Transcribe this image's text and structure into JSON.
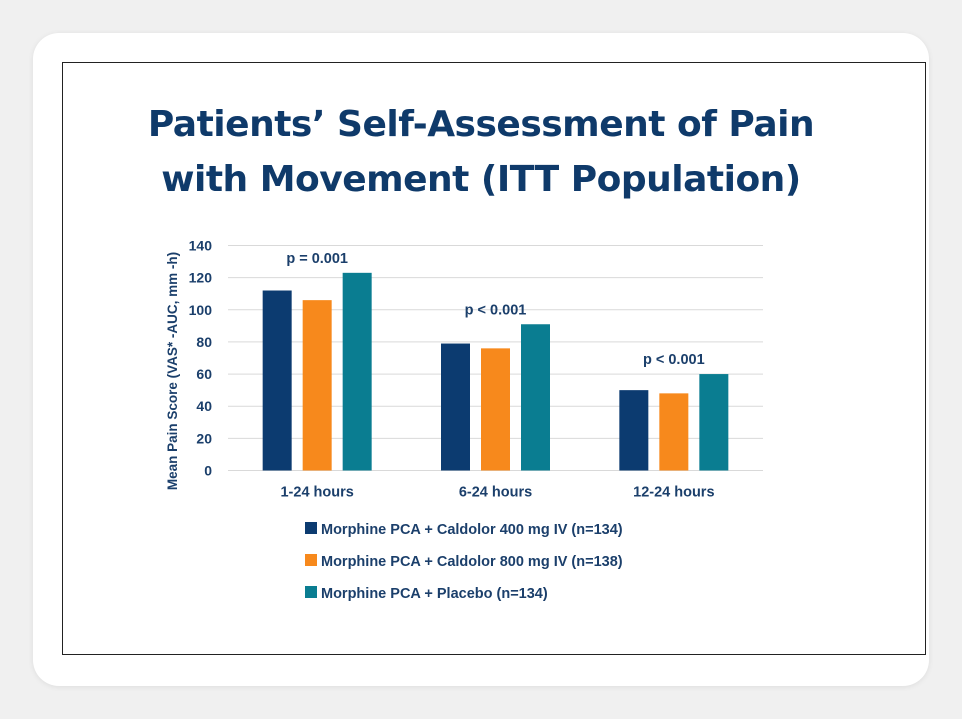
{
  "chart_data": {
    "type": "bar",
    "title": "Patients’ Self-Assessment of Pain with Movement (ITT Population)",
    "title_lines": [
      "Patients’ Self-Assessment of Pain",
      "with Movement (ITT Population)"
    ],
    "ylabel": "Mean Pain Score (VAS* -AUC, mm -h)",
    "xlabel": "",
    "ylim": [
      0,
      140
    ],
    "yticks": [
      0,
      20,
      40,
      60,
      80,
      100,
      120,
      140
    ],
    "grid": true,
    "legend_position": "bottom",
    "categories": [
      "1-24 hours",
      "6-24 hours",
      "12-24 hours"
    ],
    "annotations": [
      "p = 0.001",
      "p < 0.001",
      "p < 0.001"
    ],
    "series": [
      {
        "name": "Morphine PCA + Caldolor 400 mg IV (n=134)",
        "color": "#0c3b70",
        "values": [
          112,
          79,
          50
        ]
      },
      {
        "name": "Morphine PCA + Caldolor 800 mg IV (n=138)",
        "color": "#f7891c",
        "values": [
          106,
          76,
          48
        ]
      },
      {
        "name": "Morphine PCA + Placebo (n=134)",
        "color": "#0a7d91",
        "values": [
          123,
          91,
          60
        ]
      }
    ]
  },
  "colors": {
    "title": "#0f3a6a",
    "text": "#1b3f6b",
    "grid": "#d9d9d9"
  }
}
